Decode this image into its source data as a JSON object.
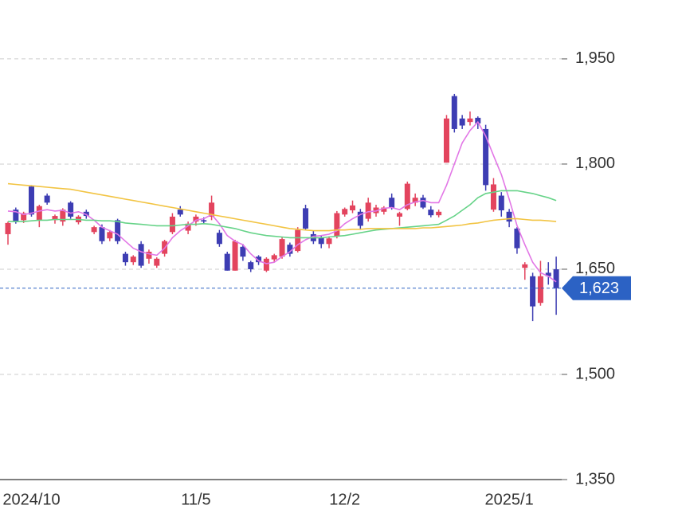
{
  "chart_data": {
    "type": "candlestick",
    "categories": [
      null,
      null,
      null,
      "2024/10",
      null,
      null,
      null,
      null,
      null,
      null,
      null,
      null,
      null,
      null,
      null,
      null,
      null,
      null,
      null,
      null,
      null,
      null,
      null,
      null,
      "11/5",
      null,
      null,
      null,
      null,
      null,
      null,
      null,
      null,
      null,
      null,
      null,
      null,
      null,
      null,
      null,
      null,
      null,
      null,
      "12/2",
      null,
      null,
      null,
      null,
      null,
      null,
      null,
      null,
      null,
      null,
      null,
      null,
      null,
      null,
      null,
      null,
      null,
      null,
      null,
      null,
      "2025/1",
      null,
      null,
      null,
      null,
      null,
      null
    ],
    "open": [
      1700,
      1735,
      1720,
      1768,
      1720,
      1755,
      1720,
      1718,
      1745,
      1717,
      1732,
      1703,
      1710,
      1694,
      1720,
      1672,
      1660,
      1686,
      1665,
      1655,
      1672,
      1703,
      1735,
      1705,
      1718,
      1720,
      1725,
      1702,
      1672,
      1648,
      1682,
      1660,
      1668,
      1648,
      1664,
      1668,
      1685,
      1676,
      1737,
      1700,
      1695,
      1686,
      1697,
      1728,
      1734,
      1732,
      1722,
      1730,
      1732,
      1752,
      1725,
      1736,
      1745,
      1752,
      1735,
      1727,
      1802,
      1897,
      1865,
      1860,
      1866,
      1850,
      1735,
      1755,
      1732,
      1708,
      1652,
      1640,
      1602,
      1645,
      1650
    ],
    "high": [
      1718,
      1738,
      1732,
      1770,
      1742,
      1758,
      1728,
      1737,
      1747,
      1727,
      1735,
      1712,
      1714,
      1706,
      1722,
      1675,
      1670,
      1690,
      1678,
      1667,
      1692,
      1730,
      1740,
      1718,
      1728,
      1724,
      1755,
      1706,
      1675,
      1692,
      1686,
      1662,
      1670,
      1667,
      1672,
      1696,
      1688,
      1710,
      1742,
      1705,
      1698,
      1697,
      1733,
      1738,
      1748,
      1736,
      1752,
      1742,
      1740,
      1758,
      1732,
      1775,
      1758,
      1756,
      1740,
      1735,
      1870,
      1900,
      1870,
      1875,
      1868,
      1856,
      1780,
      1760,
      1736,
      1710,
      1660,
      1645,
      1662,
      1660,
      1668
    ],
    "low": [
      1685,
      1715,
      1716,
      1725,
      1710,
      1742,
      1715,
      1712,
      1722,
      1714,
      1722,
      1700,
      1686,
      1690,
      1686,
      1655,
      1656,
      1652,
      1658,
      1652,
      1668,
      1700,
      1725,
      1700,
      1712,
      1715,
      1720,
      1682,
      1648,
      1648,
      1662,
      1646,
      1656,
      1646,
      1660,
      1665,
      1668,
      1674,
      1706,
      1686,
      1680,
      1680,
      1694,
      1725,
      1730,
      1706,
      1718,
      1725,
      1728,
      1735,
      1712,
      1734,
      1740,
      1736,
      1724,
      1724,
      1802,
      1845,
      1850,
      1855,
      1850,
      1762,
      1732,
      1725,
      1710,
      1672,
      1635,
      1576,
      1598,
      1628,
      1585
    ],
    "close": [
      1716,
      1718,
      1730,
      1728,
      1740,
      1745,
      1726,
      1735,
      1725,
      1725,
      1726,
      1710,
      1690,
      1703,
      1690,
      1660,
      1668,
      1655,
      1675,
      1665,
      1690,
      1725,
      1728,
      1715,
      1725,
      1718,
      1745,
      1686,
      1648,
      1690,
      1668,
      1650,
      1660,
      1665,
      1670,
      1693,
      1672,
      1706,
      1708,
      1690,
      1686,
      1694,
      1730,
      1736,
      1741,
      1712,
      1745,
      1738,
      1738,
      1738,
      1730,
      1772,
      1752,
      1738,
      1727,
      1732,
      1865,
      1850,
      1855,
      1865,
      1858,
      1770,
      1771,
      1734,
      1718,
      1680,
      1657,
      1597,
      1640,
      1640,
      1623
    ],
    "up_color": "#e3445e",
    "down_color": "#3d3db3",
    "series": [
      {
        "color": "#e277e6",
        "values": [
          1733,
          1732,
          1728,
          1730,
          1733,
          1735,
          1733,
          1734,
          1730,
          1732,
          1728,
          1720,
          1710,
          1705,
          1700,
          1690,
          1680,
          1675,
          1672,
          1670,
          1680,
          1695,
          1705,
          1712,
          1720,
          1722,
          1728,
          1715,
          1698,
          1690,
          1685,
          1672,
          1662,
          1658,
          1660,
          1668,
          1675,
          1685,
          1692,
          1697,
          1698,
          1700,
          1705,
          1715,
          1722,
          1728,
          1732,
          1733,
          1737,
          1738,
          1735,
          1742,
          1746,
          1748,
          1745,
          1745,
          1770,
          1800,
          1830,
          1848,
          1860,
          1840,
          1812,
          1785,
          1750,
          1712,
          1685,
          1660,
          1645,
          1640,
          1632
        ]
      },
      {
        "color": "#66d388",
        "values": [
          1718,
          1718,
          1718,
          1719,
          1720,
          1720,
          1721,
          1721,
          1721,
          1721,
          1720,
          1720,
          1719,
          1719,
          1718,
          1716,
          1715,
          1714,
          1713,
          1712,
          1712,
          1712,
          1713,
          1714,
          1714,
          1715,
          1714,
          1712,
          1710,
          1708,
          1705,
          1702,
          1700,
          1698,
          1697,
          1696,
          1695,
          1695,
          1695,
          1695,
          1695,
          1696,
          1697,
          1698,
          1700,
          1702,
          1704,
          1706,
          1707,
          1708,
          1709,
          1710,
          1711,
          1712,
          1713,
          1714,
          1720,
          1726,
          1734,
          1742,
          1752,
          1758,
          1760,
          1762,
          1762,
          1762,
          1760,
          1758,
          1755,
          1752,
          1748
        ]
      },
      {
        "color": "#f2c443",
        "values": [
          1772,
          1771,
          1770,
          1769,
          1768,
          1767,
          1766,
          1765,
          1764,
          1762,
          1760,
          1758,
          1756,
          1754,
          1752,
          1750,
          1748,
          1746,
          1744,
          1742,
          1740,
          1738,
          1736,
          1734,
          1732,
          1730,
          1728,
          1726,
          1724,
          1722,
          1720,
          1718,
          1716,
          1714,
          1712,
          1710,
          1708,
          1707,
          1706,
          1705,
          1705,
          1705,
          1706,
          1706,
          1707,
          1707,
          1708,
          1708,
          1708,
          1708,
          1708,
          1708,
          1708,
          1709,
          1709,
          1710,
          1711,
          1712,
          1713,
          1715,
          1716,
          1718,
          1720,
          1721,
          1722,
          1722,
          1721,
          1720,
          1720,
          1719,
          1718
        ]
      }
    ],
    "last_price": {
      "value": 1623,
      "label": "1,623"
    },
    "last_price_color": "#2c62c4",
    "ylim": [
      1350,
      2034
    ],
    "yticks": [
      {
        "value": 1350,
        "label": "1,350"
      },
      {
        "value": 1500,
        "label": "1,500"
      },
      {
        "value": 1650,
        "label": "1,650"
      },
      {
        "value": 1800,
        "label": "1,800"
      },
      {
        "value": 1950,
        "label": "1,950"
      }
    ],
    "grid": true
  }
}
